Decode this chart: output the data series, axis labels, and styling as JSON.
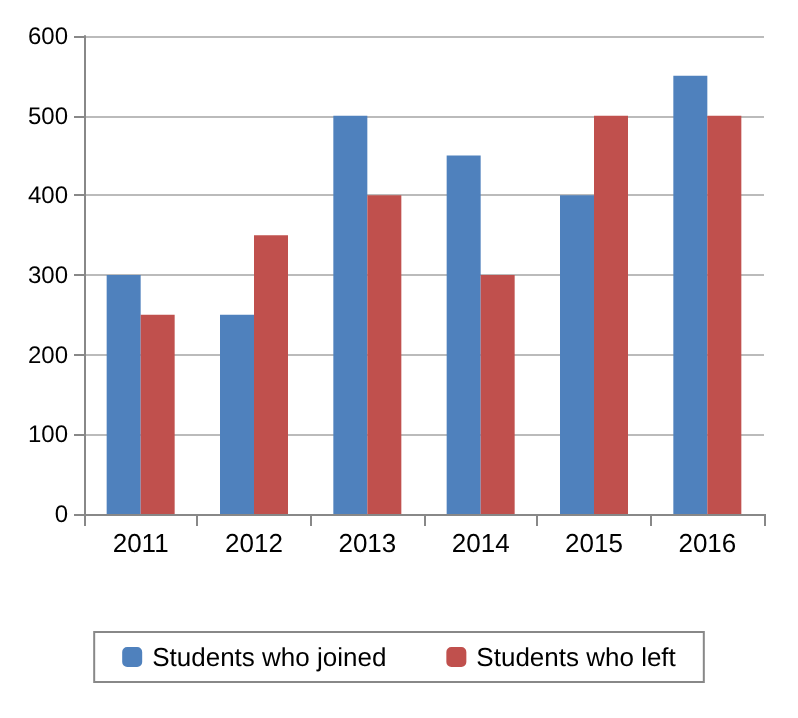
{
  "chart_data": {
    "type": "bar",
    "categories": [
      "2011",
      "2012",
      "2013",
      "2014",
      "2015",
      "2016"
    ],
    "series": [
      {
        "name": "Students who joined",
        "color": "#4f81bd",
        "values": [
          300,
          250,
          500,
          450,
          400,
          550
        ]
      },
      {
        "name": "Students who left",
        "color": "#c0504d",
        "values": [
          250,
          350,
          400,
          300,
          500,
          500
        ]
      }
    ],
    "ylim": [
      0,
      600
    ],
    "yticks": [
      0,
      100,
      200,
      300,
      400,
      500,
      600
    ],
    "grid": "y",
    "legend": "bottom"
  }
}
